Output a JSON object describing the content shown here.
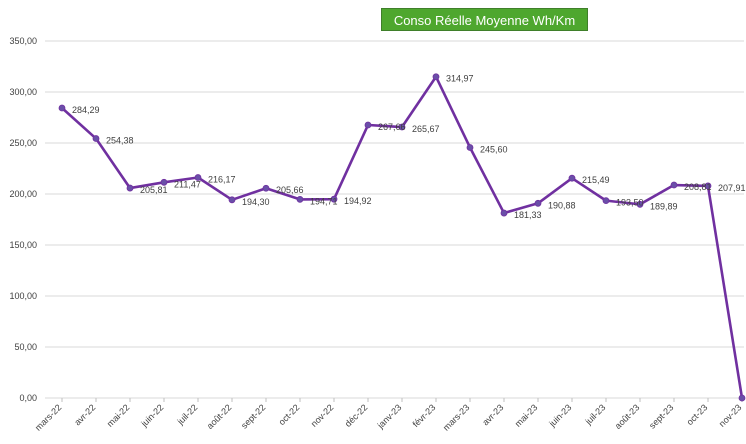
{
  "chart_data": {
    "type": "line",
    "title": "Conso Réelle Moyenne Wh/Km",
    "xlabel": "",
    "ylabel": "",
    "categories": [
      "mars-22",
      "avr-22",
      "mai-22",
      "juin-22",
      "juil-22",
      "août-22",
      "sept-22",
      "oct-22",
      "nov-22",
      "déc-22",
      "janv-23",
      "févr-23",
      "mars-23",
      "avr-23",
      "mai-23",
      "juin-23",
      "juil-23",
      "août-23",
      "sept-23",
      "oct-23",
      "nov-23"
    ],
    "series": [
      {
        "values": [
          284.29,
          254.38,
          205.81,
          211.47,
          216.17,
          194.3,
          205.66,
          194.71,
          194.92,
          267.66,
          265.67,
          314.97,
          245.6,
          181.33,
          190.88,
          215.49,
          193.5,
          189.89,
          208.81,
          207.91,
          0
        ],
        "labels": [
          "284,29",
          "254,38",
          "205,81",
          "211,47",
          "216,17",
          "194,30",
          "205,66",
          "194,71",
          "194,92",
          "267,66",
          "265,67",
          "314,97",
          "245,60",
          "181,33",
          "190,88",
          "215,49",
          "193,50",
          "189,89",
          "208,81",
          "207,91",
          ""
        ]
      }
    ],
    "ylim": [
      0,
      350
    ],
    "yticks": [
      0,
      50,
      100,
      150,
      200,
      250,
      300,
      350
    ],
    "ytick_labels": [
      "0,00",
      "50,00",
      "100,00",
      "150,00",
      "200,00",
      "250,00",
      "300,00",
      "350,00"
    ],
    "grid": true,
    "legend": "none",
    "colors": {
      "line": "#7030a0",
      "marker": "#6a4fa8",
      "grid": "#d9d9d9",
      "title_background": "#4ea72e"
    }
  }
}
